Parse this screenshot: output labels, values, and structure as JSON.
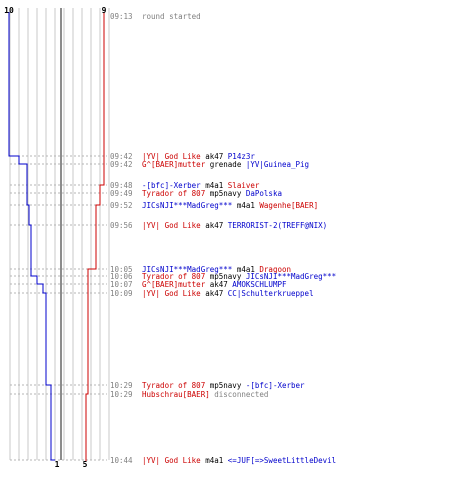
{
  "colors": {
    "team_red": "#cc0000",
    "team_blue": "#0000cc",
    "neutral": "#000000",
    "muted": "#808080",
    "grid": "#c8c8c8",
    "dash": "#b4b4b4"
  },
  "teams": {
    "blue": {
      "start_count": "10",
      "end_count": "1"
    },
    "red": {
      "start_count": "9",
      "end_count": "5"
    }
  },
  "events": [
    {
      "id": "round-start",
      "time": "09:13",
      "segments": [
        {
          "text": "round started",
          "color": "muted"
        }
      ]
    },
    {
      "id": "kill-01",
      "time": "09:42",
      "segments": [
        {
          "text": "|YV| God Like",
          "color": "team_red"
        },
        {
          "text": "ak47",
          "color": "neutral"
        },
        {
          "text": "P14z3r",
          "color": "team_blue"
        }
      ]
    },
    {
      "id": "kill-02",
      "time": "09:42",
      "segments": [
        {
          "text": "G^[BAER]mutter",
          "color": "team_red"
        },
        {
          "text": "grenade",
          "color": "neutral"
        },
        {
          "text": "|YV|Guinea_Pig",
          "color": "team_blue"
        }
      ]
    },
    {
      "id": "kill-03",
      "time": "09:48",
      "segments": [
        {
          "text": "-[bfc]-Xerber",
          "color": "team_blue"
        },
        {
          "text": "m4a1",
          "color": "neutral"
        },
        {
          "text": "Slaiver",
          "color": "team_red"
        }
      ]
    },
    {
      "id": "kill-04",
      "time": "09:49",
      "segments": [
        {
          "text": "Tyrador of 807",
          "color": "team_red"
        },
        {
          "text": "mp5navy",
          "color": "neutral"
        },
        {
          "text": "DaPolska",
          "color": "team_blue"
        }
      ]
    },
    {
      "id": "kill-05",
      "time": "09:52",
      "segments": [
        {
          "text": "JICsNJI***MadGreg***",
          "color": "team_blue"
        },
        {
          "text": "m4a1",
          "color": "neutral"
        },
        {
          "text": "Wagenhe[BAER]",
          "color": "team_red"
        }
      ]
    },
    {
      "id": "kill-06",
      "time": "09:56",
      "segments": [
        {
          "text": "|YV| God Like",
          "color": "team_red"
        },
        {
          "text": "ak47",
          "color": "neutral"
        },
        {
          "text": "TERRORIST-2(TREFF@NIX)",
          "color": "team_blue"
        }
      ]
    },
    {
      "id": "kill-07",
      "time": "10:05",
      "segments": [
        {
          "text": "JICsNJI***MadGreg***",
          "color": "team_blue"
        },
        {
          "text": "m4a1",
          "color": "neutral"
        },
        {
          "text": "Dragoon",
          "color": "team_red"
        }
      ]
    },
    {
      "id": "kill-08",
      "time": "10:06",
      "segments": [
        {
          "text": "Tyrador of 807",
          "color": "team_red"
        },
        {
          "text": "mp5navy",
          "color": "neutral"
        },
        {
          "text": "JICsNJI***MadGreg***",
          "color": "team_blue"
        }
      ]
    },
    {
      "id": "kill-09",
      "time": "10:07",
      "segments": [
        {
          "text": "G^[BAER]mutter",
          "color": "team_red"
        },
        {
          "text": "ak47",
          "color": "neutral"
        },
        {
          "text": "AMOKSCHLUMPF",
          "color": "team_blue"
        }
      ]
    },
    {
      "id": "kill-10",
      "time": "10:09",
      "segments": [
        {
          "text": "|YV| God Like",
          "color": "team_red"
        },
        {
          "text": "ak47",
          "color": "neutral"
        },
        {
          "text": "CC|Schulterkrueppel",
          "color": "team_blue"
        }
      ]
    },
    {
      "id": "kill-11",
      "time": "10:29",
      "segments": [
        {
          "text": "Tyrador of 807",
          "color": "team_red"
        },
        {
          "text": "mp5navy",
          "color": "neutral"
        },
        {
          "text": "-[bfc]-Xerber",
          "color": "team_blue"
        }
      ]
    },
    {
      "id": "disconnect-01",
      "time": "10:29",
      "segments": [
        {
          "text": "Hubschrau[BAER]",
          "color": "team_red"
        },
        {
          "text": "disconnected",
          "color": "muted"
        }
      ]
    },
    {
      "id": "kill-12",
      "time": "10:44",
      "segments": [
        {
          "text": "|YV| God Like",
          "color": "team_red"
        },
        {
          "text": "m4a1",
          "color": "neutral"
        },
        {
          "text": "<=JUF[=>SweetLittleDevil",
          "color": "team_blue"
        }
      ]
    }
  ]
}
